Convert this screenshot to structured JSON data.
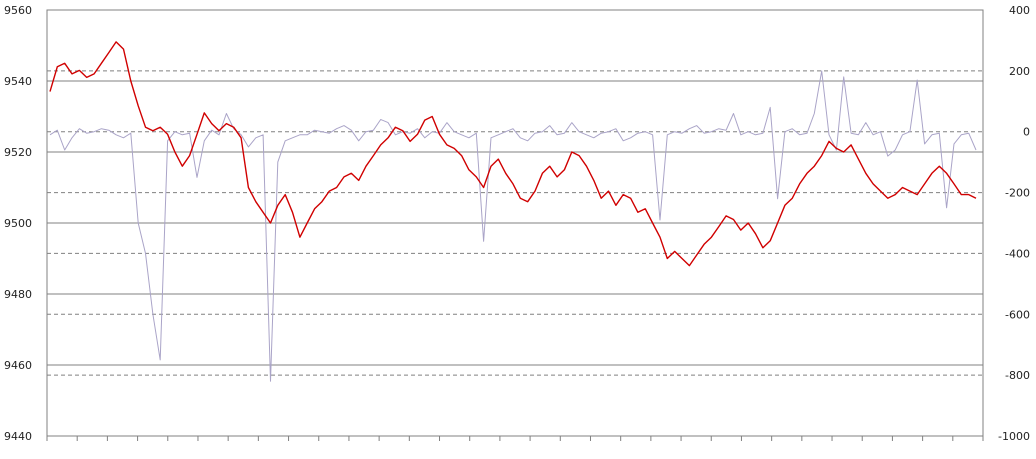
{
  "chart_data": {
    "type": "line",
    "title": "",
    "xlabel": "",
    "ylabel": "",
    "y_left": {
      "lim": [
        9440,
        9560
      ],
      "ticks": [
        9440,
        9460,
        9480,
        9500,
        9520,
        9540,
        9560
      ]
    },
    "y_right": {
      "lim": [
        -1000,
        400
      ],
      "ticks": [
        -1000,
        -800,
        -600,
        -400,
        -200,
        0,
        200,
        400
      ]
    },
    "grid": {
      "left_axis": "solid",
      "right_axis": "dashed"
    },
    "legend": "none",
    "x_ticks_count": 31,
    "colors": {
      "price": "#d00000",
      "volume": "#aaa4c8",
      "grid_left": "#808080",
      "grid_right": "#808080",
      "axis": "#808080"
    },
    "series": [
      {
        "axis": "left",
        "values": [
          9537,
          9544,
          9545,
          9542,
          9543,
          9541,
          9542,
          9545,
          9548,
          9551,
          9549,
          9540,
          9533,
          9527,
          9526,
          9527,
          9525,
          9520,
          9516,
          9519,
          9525,
          9531,
          9528,
          9526,
          9528,
          9527,
          9524,
          9510,
          9506,
          9503,
          9500,
          9505,
          9508,
          9503,
          9496,
          9500,
          9504,
          9506,
          9509,
          9510,
          9513,
          9514,
          9512,
          9516,
          9519,
          9522,
          9524,
          9527,
          9526,
          9523,
          9525,
          9529,
          9530,
          9525,
          9522,
          9521,
          9519,
          9515,
          9513,
          9510,
          9516,
          9518,
          9514,
          9511,
          9507,
          9506,
          9509,
          9514,
          9516,
          9513,
          9515,
          9520,
          9519,
          9516,
          9512,
          9507,
          9509,
          9505,
          9508,
          9507,
          9503,
          9504,
          9500,
          9496,
          9490,
          9492,
          9490,
          9488,
          9491,
          9494,
          9496,
          9499,
          9502,
          9501,
          9498,
          9500,
          9497,
          9493,
          9495,
          9500,
          9505,
          9507,
          9511,
          9514,
          9516,
          9519,
          9523,
          9521,
          9520,
          9522,
          9518,
          9514,
          9511,
          9509,
          9507,
          9508,
          9510,
          9509,
          9508,
          9511,
          9514,
          9516,
          9514,
          9511,
          9508,
          9508,
          9507
        ]
      },
      {
        "axis": "right",
        "values": [
          -10,
          5,
          -60,
          -20,
          10,
          -5,
          0,
          10,
          5,
          -10,
          -20,
          -5,
          -300,
          -400,
          -600,
          -750,
          -30,
          0,
          -10,
          -5,
          -150,
          -30,
          5,
          -10,
          60,
          10,
          -10,
          -50,
          -20,
          -10,
          -820,
          -100,
          -30,
          -20,
          -10,
          -10,
          5,
          0,
          -5,
          10,
          20,
          5,
          -30,
          0,
          5,
          40,
          30,
          -10,
          0,
          -5,
          10,
          -20,
          0,
          -5,
          30,
          0,
          -10,
          -20,
          -5,
          -360,
          -20,
          -10,
          0,
          10,
          -20,
          -30,
          -5,
          0,
          20,
          -10,
          -5,
          30,
          0,
          -10,
          -20,
          -5,
          0,
          10,
          -30,
          -20,
          -5,
          0,
          -10,
          -290,
          -10,
          0,
          -5,
          10,
          20,
          -5,
          0,
          10,
          5,
          60,
          -10,
          0,
          -10,
          -5,
          80,
          -220,
          0,
          10,
          -10,
          -5,
          60,
          200,
          -10,
          -60,
          180,
          -5,
          -10,
          30,
          -10,
          0,
          -80,
          -60,
          -10,
          0,
          170,
          -40,
          -10,
          -5,
          -250,
          -40,
          -10,
          -5,
          -60
        ]
      }
    ]
  }
}
